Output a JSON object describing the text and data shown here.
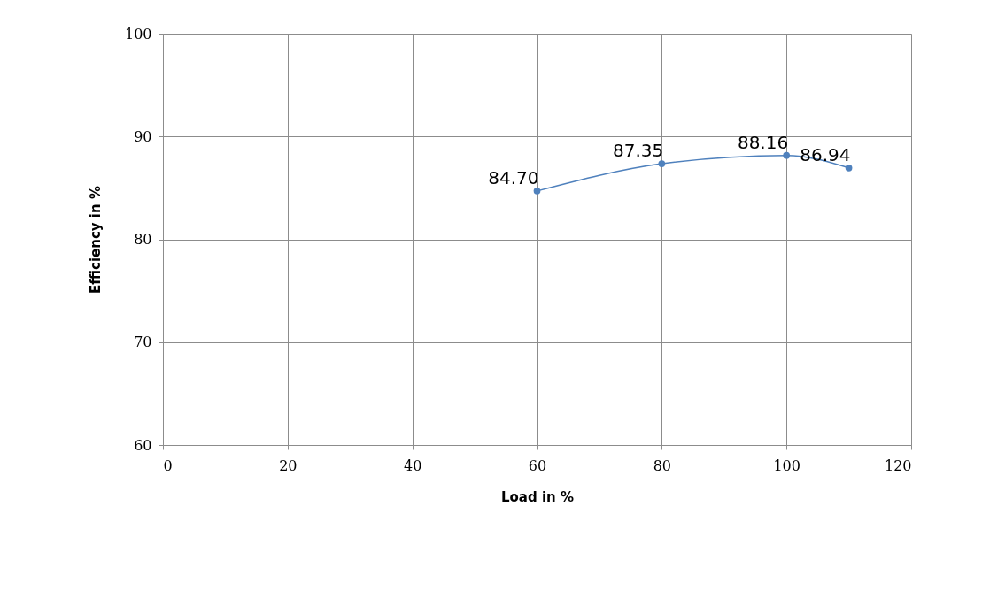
{
  "chart_data": {
    "type": "line",
    "xlabel": "Load in %",
    "ylabel": "Efficiency in %",
    "x": [
      60,
      80,
      100,
      110
    ],
    "series": [
      {
        "color": "#4f81bd",
        "values": [
          84.7,
          87.35,
          88.16,
          86.94
        ],
        "value_labels": [
          "84.70",
          "87.35",
          "88.16",
          "86.94"
        ]
      }
    ],
    "xlim": [
      0,
      120
    ],
    "xticks": [
      0,
      20,
      40,
      60,
      80,
      100,
      120
    ],
    "ylim": [
      60,
      100
    ],
    "yticks": [
      60,
      70,
      80,
      90,
      100
    ],
    "grid": true,
    "marker": "circle"
  }
}
